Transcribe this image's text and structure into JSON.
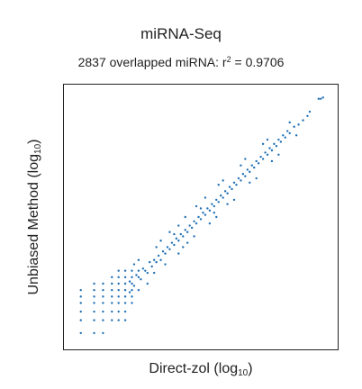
{
  "chart_data": {
    "type": "scatter",
    "title": "miRNA-Seq",
    "subtitle": {
      "prefix": "2837 overlapped miRNA: r",
      "sup": "2",
      "suffix": " = 0.9706"
    },
    "xlabel": {
      "main": "Direct-zol (log",
      "sub": "10",
      "close": ")"
    },
    "ylabel": {
      "main": "Unbiased Method (log",
      "sub": "10",
      "close": ")"
    },
    "xlim": [
      0,
      6.2
    ],
    "ylim": [
      0,
      6.2
    ],
    "grid": false,
    "legend": "none",
    "color": "#1f6fb4",
    "series": [
      {
        "points": [
          [
            0.4,
            0.4
          ],
          [
            0.7,
            0.4
          ],
          [
            0.9,
            0.4
          ],
          [
            0.4,
            0.7
          ],
          [
            0.7,
            0.7
          ],
          [
            0.9,
            0.7
          ],
          [
            1.1,
            0.7
          ],
          [
            1.25,
            0.7
          ],
          [
            1.4,
            0.7
          ],
          [
            0.4,
            0.9
          ],
          [
            0.7,
            0.9
          ],
          [
            0.9,
            0.9
          ],
          [
            1.1,
            0.9
          ],
          [
            1.25,
            0.9
          ],
          [
            1.4,
            0.9
          ],
          [
            0.4,
            1.1
          ],
          [
            0.7,
            1.1
          ],
          [
            0.9,
            1.1
          ],
          [
            1.1,
            1.1
          ],
          [
            1.25,
            1.1
          ],
          [
            1.4,
            1.1
          ],
          [
            1.55,
            1.1
          ],
          [
            0.4,
            1.25
          ],
          [
            0.7,
            1.25
          ],
          [
            0.9,
            1.25
          ],
          [
            1.1,
            1.25
          ],
          [
            1.25,
            1.25
          ],
          [
            1.4,
            1.25
          ],
          [
            1.55,
            1.25
          ],
          [
            0.4,
            1.4
          ],
          [
            0.7,
            1.4
          ],
          [
            0.9,
            1.4
          ],
          [
            1.1,
            1.4
          ],
          [
            1.25,
            1.4
          ],
          [
            1.4,
            1.4
          ],
          [
            1.55,
            1.4
          ],
          [
            1.7,
            1.4
          ],
          [
            0.7,
            1.55
          ],
          [
            0.9,
            1.55
          ],
          [
            1.1,
            1.55
          ],
          [
            1.25,
            1.55
          ],
          [
            1.4,
            1.55
          ],
          [
            1.55,
            1.55
          ],
          [
            1.1,
            1.7
          ],
          [
            1.25,
            1.7
          ],
          [
            1.4,
            1.7
          ],
          [
            1.55,
            1.7
          ],
          [
            1.7,
            1.7
          ],
          [
            1.25,
            1.85
          ],
          [
            1.4,
            1.85
          ],
          [
            1.55,
            1.85
          ],
          [
            1.7,
            1.85
          ],
          [
            1.85,
            1.85
          ],
          [
            1.5,
            1.6
          ],
          [
            1.6,
            1.5
          ],
          [
            1.65,
            1.75
          ],
          [
            1.75,
            1.65
          ],
          [
            1.8,
            1.9
          ],
          [
            1.9,
            1.8
          ],
          [
            1.95,
            2.05
          ],
          [
            2.0,
            1.95
          ],
          [
            2.05,
            2.1
          ],
          [
            2.1,
            2.05
          ],
          [
            2.15,
            2.2
          ],
          [
            2.2,
            2.1
          ],
          [
            2.25,
            2.3
          ],
          [
            2.3,
            2.25
          ],
          [
            2.35,
            2.4
          ],
          [
            2.4,
            2.35
          ],
          [
            2.45,
            2.5
          ],
          [
            2.5,
            2.45
          ],
          [
            2.55,
            2.6
          ],
          [
            2.6,
            2.55
          ],
          [
            2.65,
            2.7
          ],
          [
            2.7,
            2.65
          ],
          [
            2.75,
            2.8
          ],
          [
            2.8,
            2.75
          ],
          [
            2.85,
            2.9
          ],
          [
            2.9,
            2.85
          ],
          [
            2.95,
            3.0
          ],
          [
            3.0,
            2.95
          ],
          [
            3.05,
            3.1
          ],
          [
            3.1,
            3.05
          ],
          [
            3.15,
            3.2
          ],
          [
            3.2,
            3.15
          ],
          [
            3.25,
            3.3
          ],
          [
            3.3,
            3.25
          ],
          [
            3.35,
            3.4
          ],
          [
            3.4,
            3.35
          ],
          [
            3.45,
            3.5
          ],
          [
            3.5,
            3.45
          ],
          [
            3.55,
            3.6
          ],
          [
            3.6,
            3.55
          ],
          [
            3.65,
            3.7
          ],
          [
            3.7,
            3.65
          ],
          [
            3.75,
            3.8
          ],
          [
            3.8,
            3.75
          ],
          [
            3.85,
            3.9
          ],
          [
            3.9,
            3.85
          ],
          [
            3.95,
            4.0
          ],
          [
            4.0,
            3.95
          ],
          [
            4.05,
            4.1
          ],
          [
            4.1,
            4.05
          ],
          [
            4.15,
            4.2
          ],
          [
            4.2,
            4.15
          ],
          [
            4.25,
            4.3
          ],
          [
            4.3,
            4.25
          ],
          [
            4.35,
            4.4
          ],
          [
            4.4,
            4.35
          ],
          [
            4.45,
            4.5
          ],
          [
            4.5,
            4.45
          ],
          [
            4.55,
            4.6
          ],
          [
            4.6,
            4.55
          ],
          [
            4.65,
            4.7
          ],
          [
            4.7,
            4.65
          ],
          [
            4.75,
            4.8
          ],
          [
            4.8,
            4.75
          ],
          [
            4.85,
            4.9
          ],
          [
            4.9,
            4.85
          ],
          [
            4.95,
            5.0
          ],
          [
            5.0,
            4.95
          ],
          [
            5.05,
            5.1
          ],
          [
            5.1,
            5.05
          ],
          [
            5.2,
            5.2
          ],
          [
            5.3,
            5.25
          ],
          [
            5.4,
            5.35
          ],
          [
            5.5,
            5.45
          ],
          [
            5.55,
            5.55
          ],
          [
            5.75,
            5.85
          ],
          [
            5.8,
            5.85
          ],
          [
            5.85,
            5.88
          ],
          [
            2.1,
            2.4
          ],
          [
            2.3,
            2.0
          ],
          [
            2.6,
            2.9
          ],
          [
            2.8,
            2.5
          ],
          [
            3.0,
            3.35
          ],
          [
            3.3,
            2.95
          ],
          [
            3.5,
            3.85
          ],
          [
            3.7,
            3.4
          ],
          [
            4.0,
            4.3
          ],
          [
            4.2,
            3.9
          ],
          [
            4.5,
            4.8
          ],
          [
            4.7,
            4.4
          ],
          [
            1.6,
            2.0
          ],
          [
            1.9,
            1.55
          ],
          [
            2.4,
            2.75
          ],
          [
            2.6,
            2.25
          ],
          [
            3.2,
            3.55
          ],
          [
            3.45,
            3.1
          ],
          [
            1.5,
            1.35
          ],
          [
            1.7,
            2.1
          ],
          [
            2.05,
            1.8
          ],
          [
            2.2,
            2.55
          ],
          [
            2.75,
            3.1
          ],
          [
            2.95,
            2.65
          ],
          [
            3.6,
            3.95
          ],
          [
            3.85,
            3.5
          ],
          [
            4.1,
            4.45
          ],
          [
            4.35,
            4.0
          ],
          [
            4.6,
            4.9
          ],
          [
            4.85,
            4.55
          ],
          [
            5.1,
            5.3
          ],
          [
            5.25,
            5.0
          ],
          [
            2.5,
            2.7
          ],
          [
            2.7,
            2.4
          ],
          [
            3.1,
            3.3
          ],
          [
            3.4,
            3.2
          ]
        ]
      }
    ]
  }
}
